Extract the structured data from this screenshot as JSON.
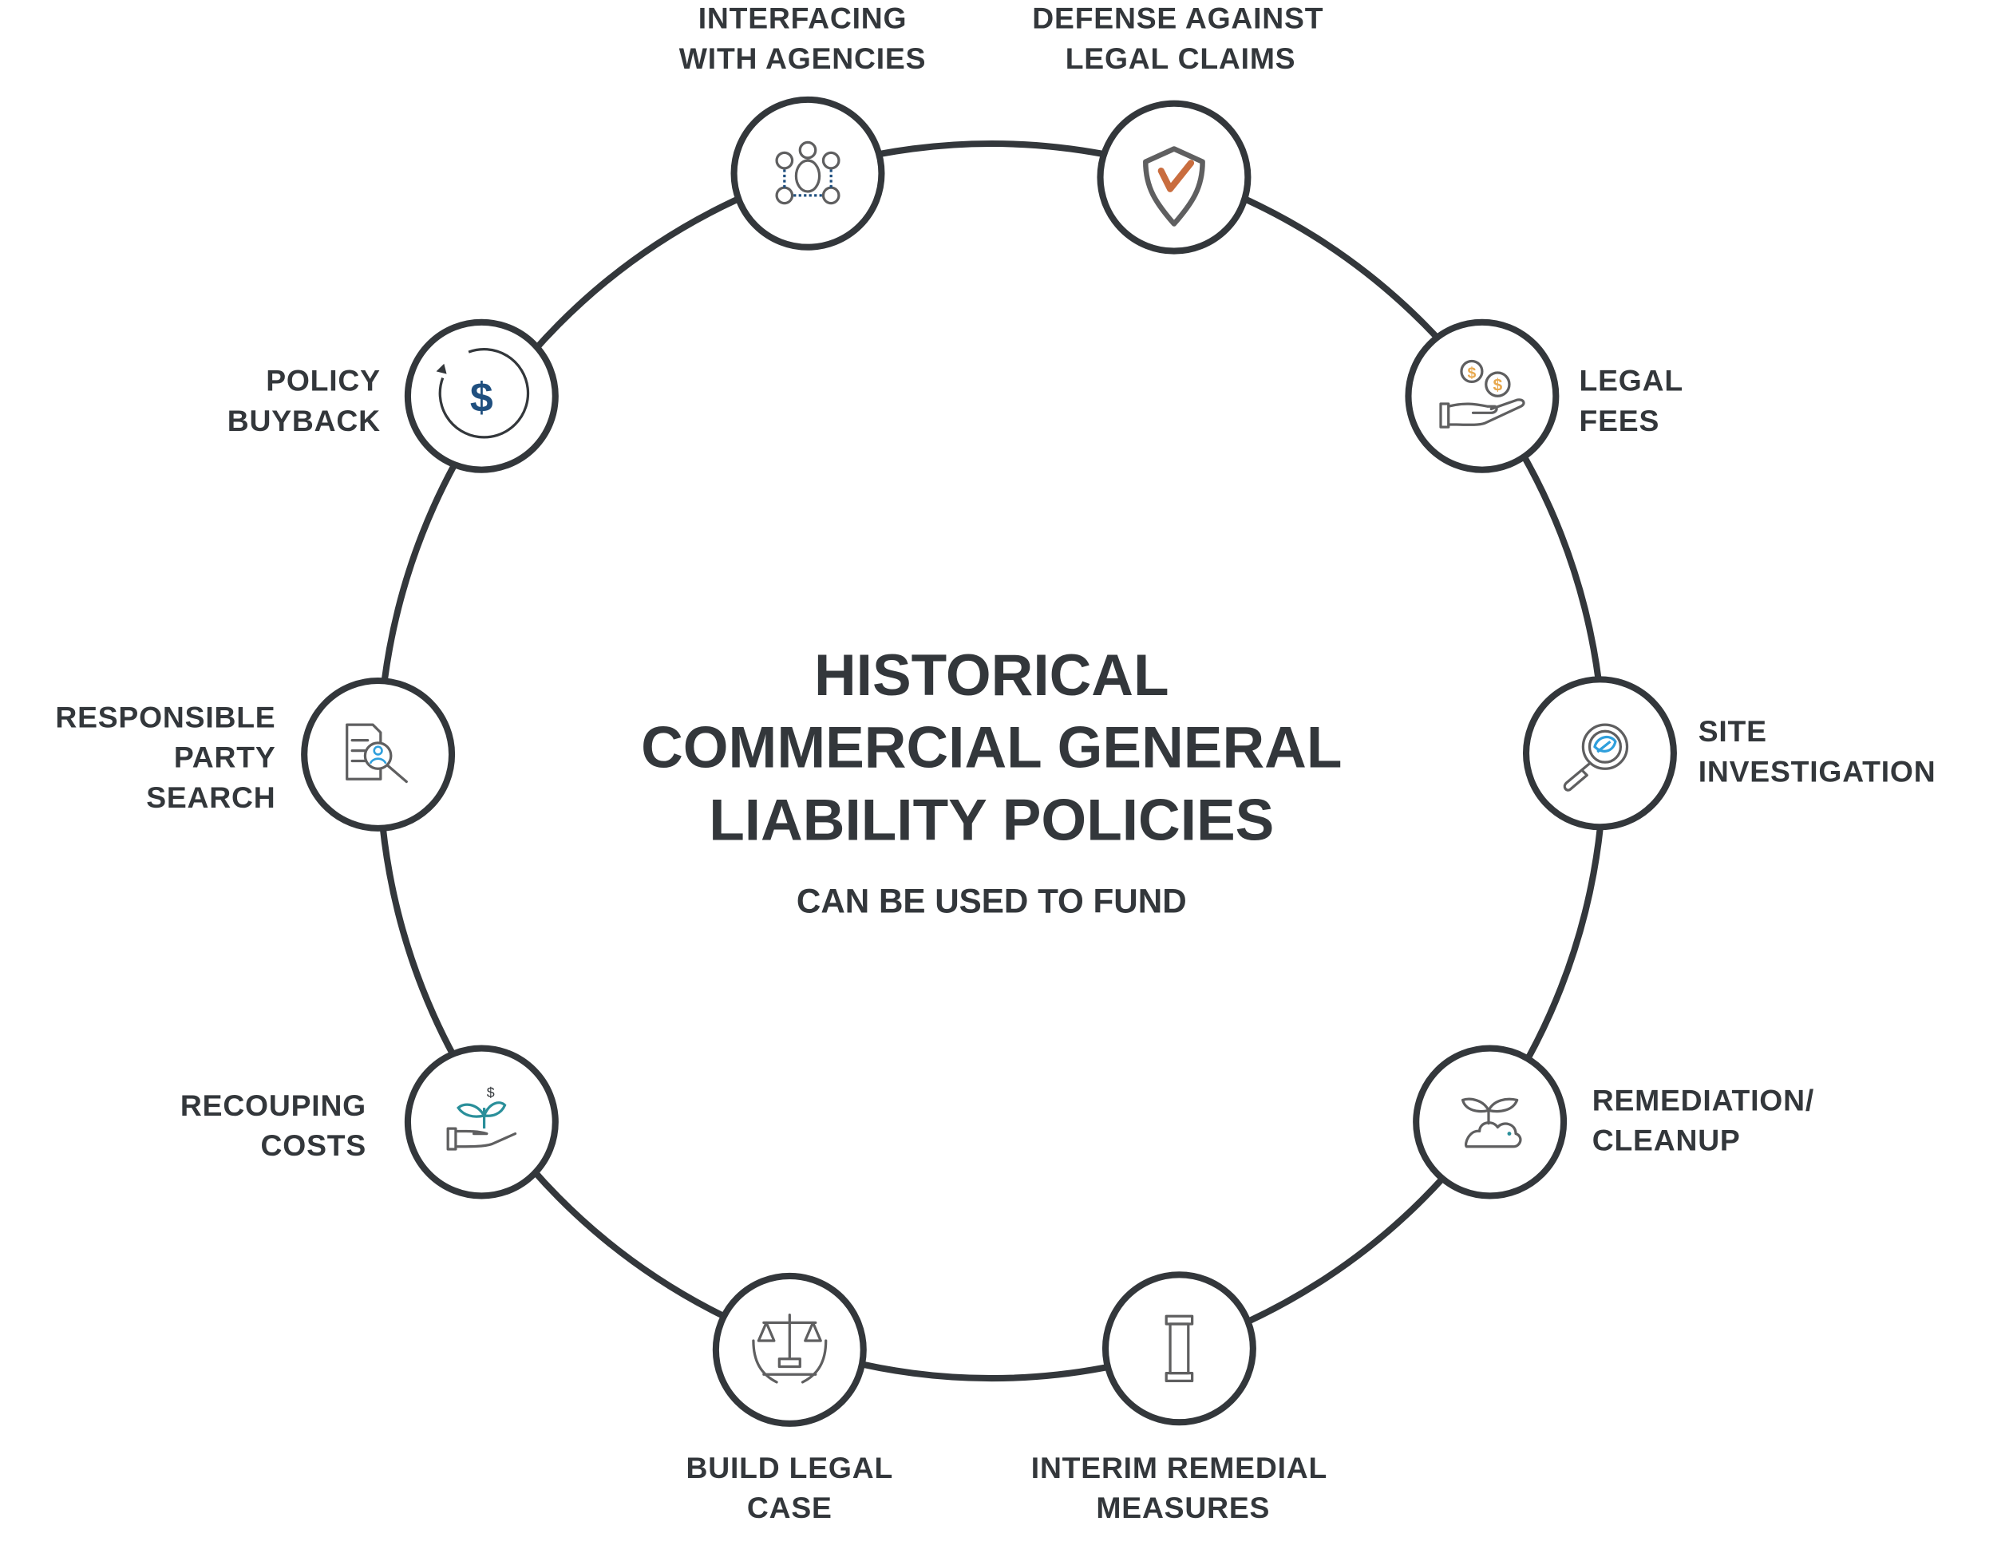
{
  "title": {
    "line1": "HISTORICAL",
    "line2": "COMMERCIAL GENERAL",
    "line3": "LIABILITY POLICIES"
  },
  "subtitle": "CAN BE USED TO FUND",
  "colors": {
    "ring": "#33373b",
    "icon_gray": "#5f5f60",
    "orange": "#c96d3f",
    "gold": "#e8a94f",
    "blue": "#2f9fdc",
    "navy": "#1f4f7f",
    "teal": "#2a8f9a"
  },
  "items": [
    {
      "icon": "network-people-icon",
      "lines": [
        "INTERFACING",
        "WITH AGENCIES"
      ]
    },
    {
      "icon": "shield-check-icon",
      "lines": [
        "DEFENSE AGAINST",
        "LEGAL CLAIMS"
      ]
    },
    {
      "icon": "hand-coins-icon",
      "lines": [
        "LEGAL",
        "FEES"
      ]
    },
    {
      "icon": "magnifier-leaf-icon",
      "lines": [
        "SITE",
        "INVESTIGATION"
      ]
    },
    {
      "icon": "plant-cloud-icon",
      "lines": [
        "REMEDIATION/",
        "CLEANUP"
      ]
    },
    {
      "icon": "pipe-icon",
      "lines": [
        "INTERIM REMEDIAL",
        "MEASURES"
      ]
    },
    {
      "icon": "scales-hands-icon",
      "lines": [
        "BUILD LEGAL",
        "CASE"
      ]
    },
    {
      "icon": "hand-plant-dollar-icon",
      "lines": [
        "RECOUPING",
        "COSTS"
      ]
    },
    {
      "icon": "document-search-person-icon",
      "lines": [
        "RESPONSIBLE",
        "PARTY",
        "SEARCH"
      ]
    },
    {
      "icon": "dollar-cycle-icon",
      "lines": [
        "POLICY",
        "BUYBACK"
      ]
    }
  ]
}
